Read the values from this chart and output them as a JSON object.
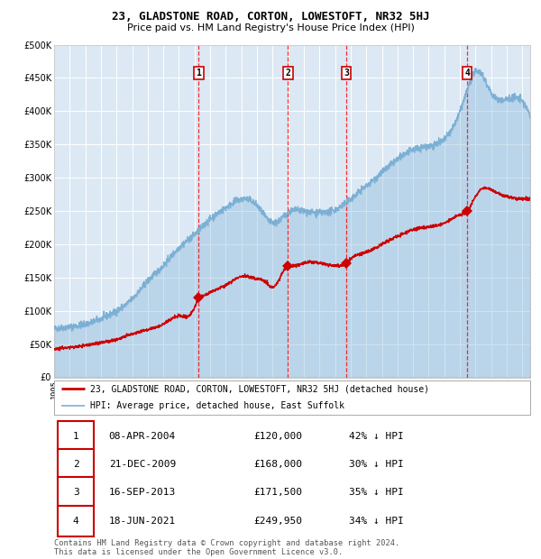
{
  "title": "23, GLADSTONE ROAD, CORTON, LOWESTOFT, NR32 5HJ",
  "subtitle": "Price paid vs. HM Land Registry's House Price Index (HPI)",
  "ylim": [
    0,
    500000
  ],
  "yticks": [
    0,
    50000,
    100000,
    150000,
    200000,
    250000,
    300000,
    350000,
    400000,
    450000,
    500000
  ],
  "ytick_labels": [
    "£0",
    "£50K",
    "£100K",
    "£150K",
    "£200K",
    "£250K",
    "£300K",
    "£350K",
    "£400K",
    "£450K",
    "£500K"
  ],
  "bg_color": "#dce9f5",
  "grid_color": "#ffffff",
  "red_color": "#cc0000",
  "blue_color": "#7bafd4",
  "sale_dates": [
    2004.27,
    2009.97,
    2013.71,
    2021.46
  ],
  "sale_prices": [
    120000,
    168000,
    171500,
    249950
  ],
  "sale_labels": [
    "1",
    "2",
    "3",
    "4"
  ],
  "table_data": [
    [
      "1",
      "08-APR-2004",
      "£120,000",
      "42% ↓ HPI"
    ],
    [
      "2",
      "21-DEC-2009",
      "£168,000",
      "30% ↓ HPI"
    ],
    [
      "3",
      "16-SEP-2013",
      "£171,500",
      "35% ↓ HPI"
    ],
    [
      "4",
      "18-JUN-2021",
      "£249,950",
      "34% ↓ HPI"
    ]
  ],
  "legend_line1": "23, GLADSTONE ROAD, CORTON, LOWESTOFT, NR32 5HJ (detached house)",
  "legend_line2": "HPI: Average price, detached house, East Suffolk",
  "footer": "Contains HM Land Registry data © Crown copyright and database right 2024.\nThis data is licensed under the Open Government Licence v3.0.",
  "xmin": 1995,
  "xmax": 2025.5
}
